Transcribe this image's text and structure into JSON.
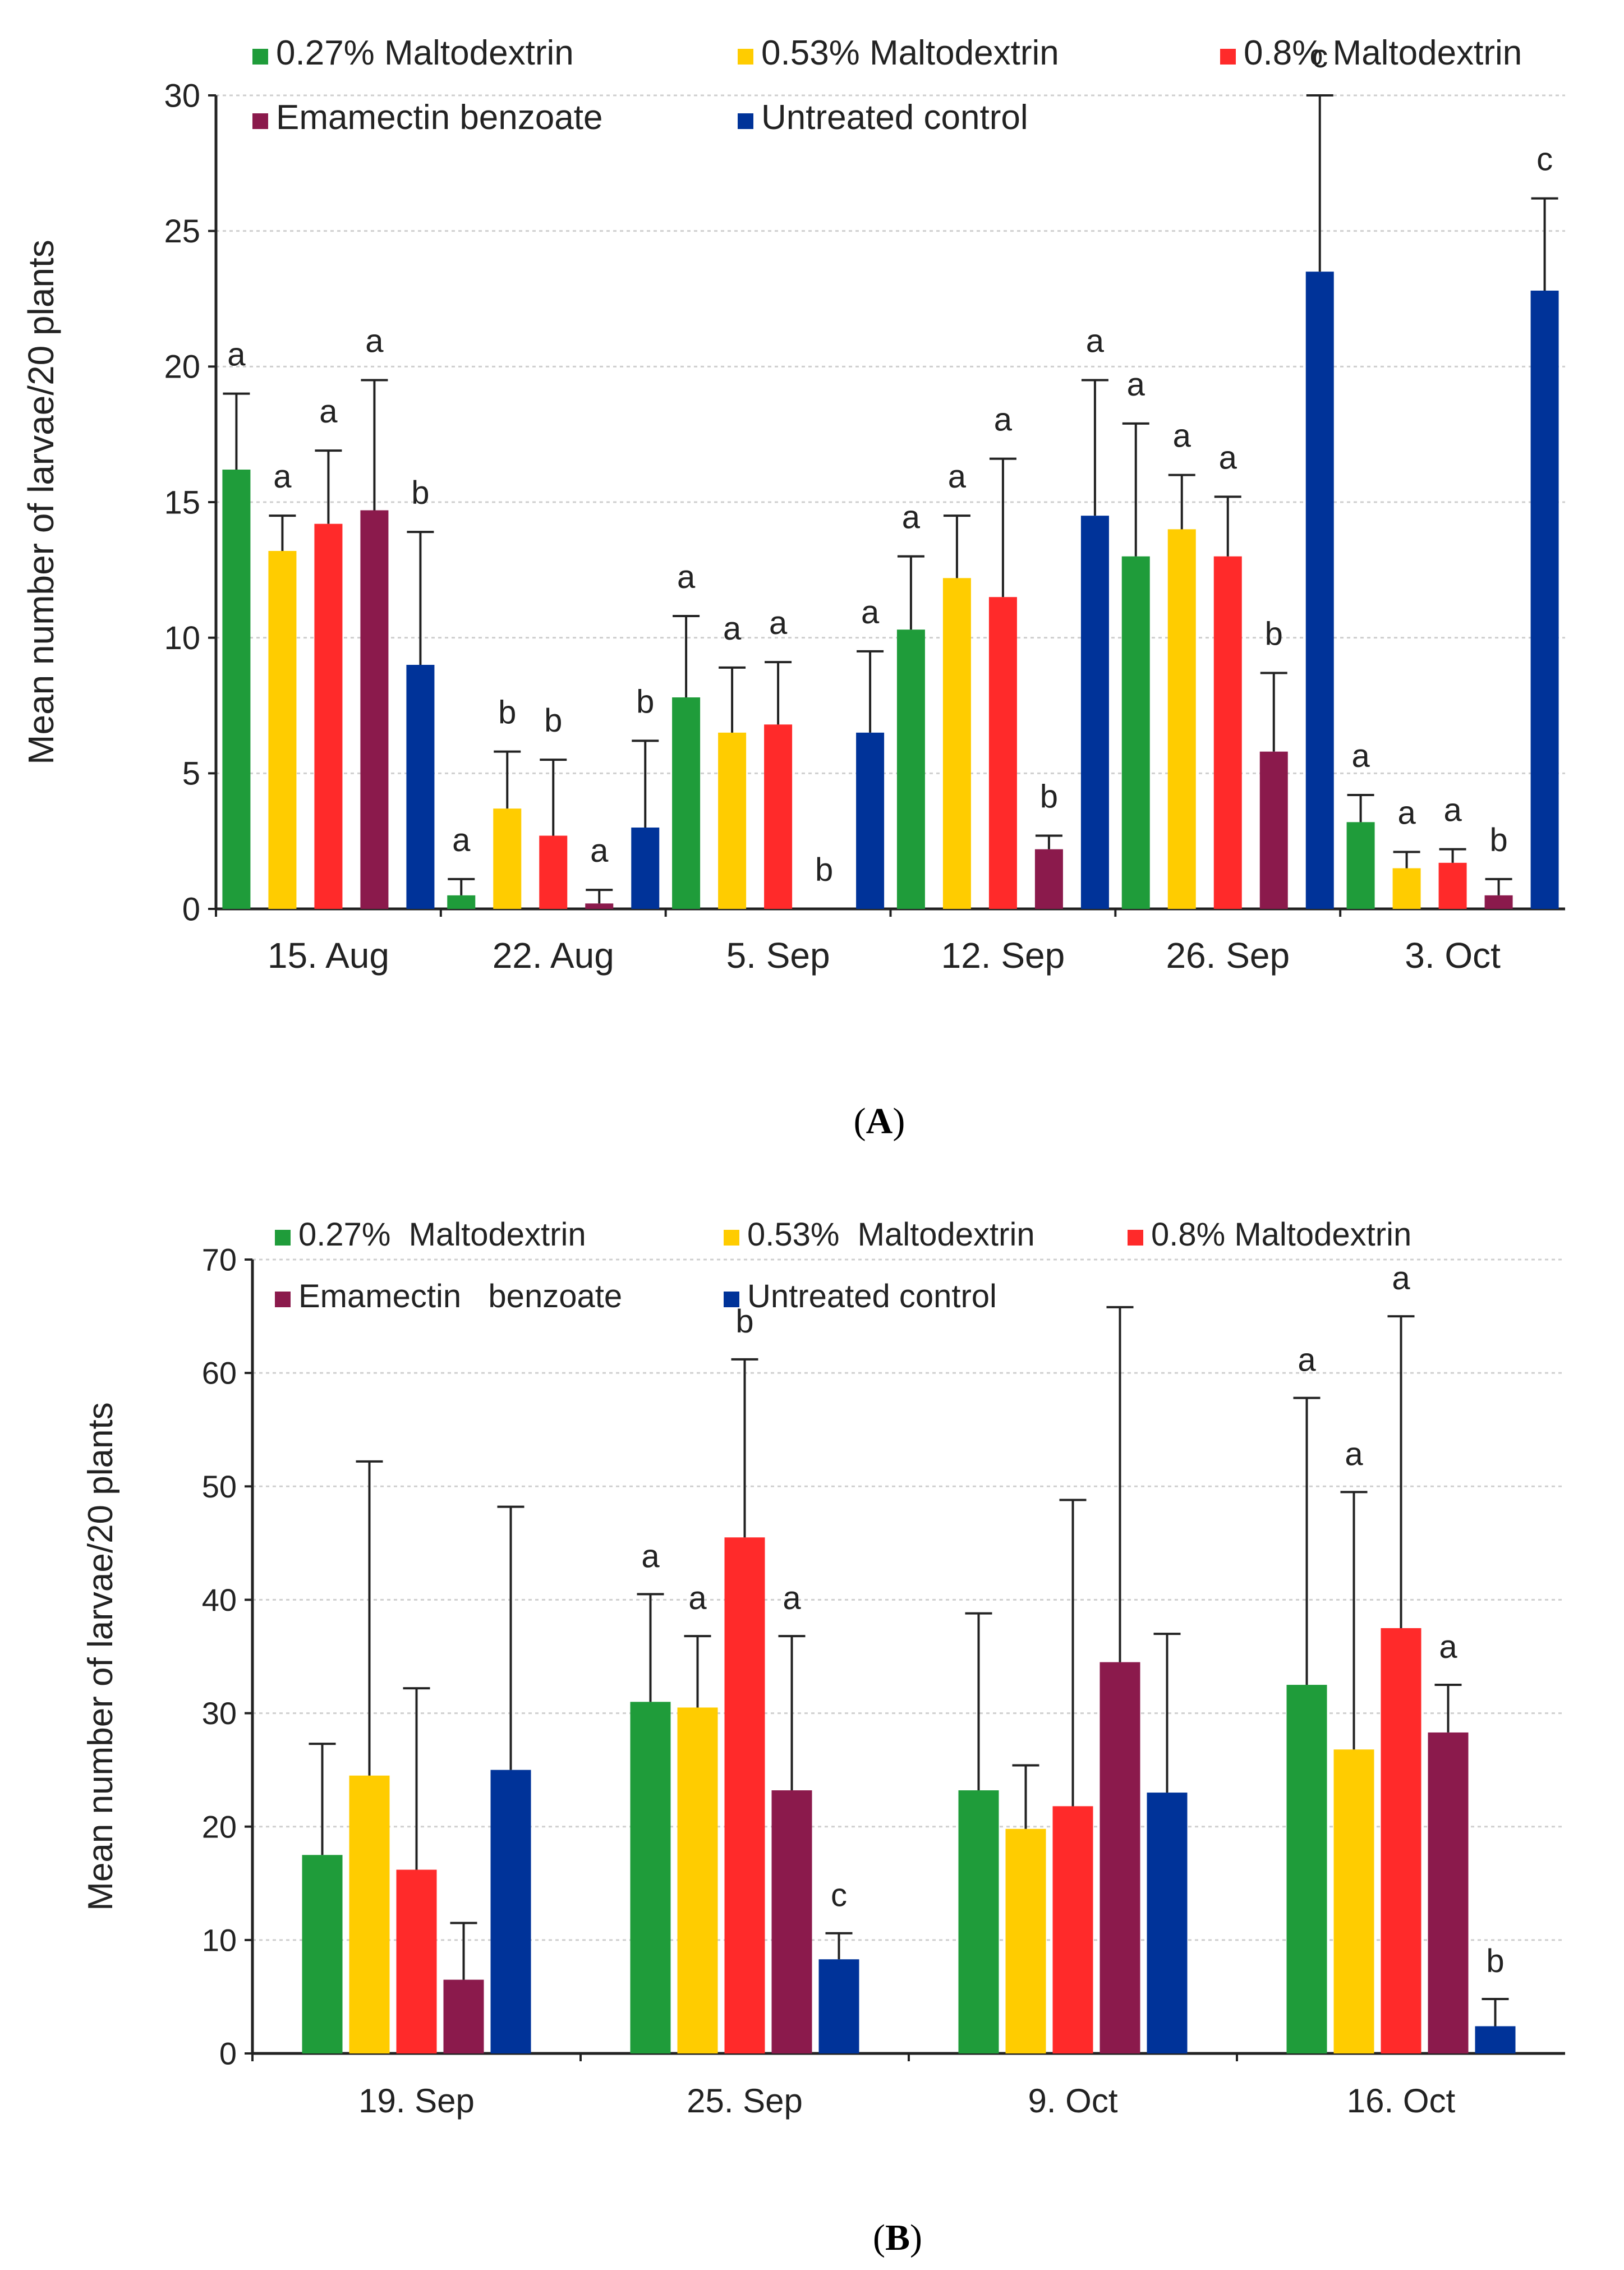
{
  "chart_data": [
    {
      "type": "bar",
      "panel_label": "A",
      "ylabel": "Mean number of larvae/20 plants",
      "ylim": [
        0,
        30
      ],
      "yticks": [
        "0",
        "5",
        "10",
        "15",
        "20",
        "25",
        "30"
      ],
      "grid": true,
      "categories": [
        "15. Aug",
        "22. Aug",
        "5. Sep",
        "12. Sep",
        "26. Sep",
        "3. Oct"
      ],
      "series": [
        {
          "name": "0.27% Maltodextrin",
          "color": "#1f9c3a",
          "values": [
            16.2,
            0.5,
            7.8,
            10.3,
            13.0,
            3.2
          ],
          "errors": [
            2.8,
            0.6,
            3.0,
            2.7,
            4.9,
            1.0
          ],
          "labels": [
            "a",
            "a",
            "a",
            "a",
            "a",
            "a"
          ]
        },
        {
          "name": "0.53% Maltodextrin",
          "color": "#ffcc00",
          "values": [
            13.2,
            3.7,
            6.5,
            12.2,
            14.0,
            1.5
          ],
          "errors": [
            1.3,
            2.1,
            2.4,
            2.3,
            2.0,
            0.6
          ],
          "labels": [
            "a",
            "b",
            "a",
            "a",
            "a",
            "a"
          ]
        },
        {
          "name": "0.8% Maltodextrin",
          "color": "#ff2a2a",
          "values": [
            14.2,
            2.7,
            6.8,
            11.5,
            13.0,
            1.7
          ],
          "errors": [
            2.7,
            2.8,
            2.3,
            5.1,
            2.2,
            0.5
          ],
          "labels": [
            "a",
            "b",
            "a",
            "a",
            "a",
            "a"
          ]
        },
        {
          "name": "Emamectin benzoate",
          "color": "#8b1a4c",
          "values": [
            14.7,
            0.2,
            0.0,
            2.2,
            5.8,
            0.5
          ],
          "errors": [
            4.8,
            0.5,
            0.0,
            0.5,
            2.9,
            0.6
          ],
          "labels": [
            "a",
            "a",
            "b",
            "b",
            "b",
            "b"
          ]
        },
        {
          "name": "Untreated control",
          "color": "#003399",
          "values": [
            9.0,
            3.0,
            6.5,
            14.5,
            23.5,
            22.8
          ],
          "errors": [
            4.9,
            3.2,
            3.0,
            5.0,
            6.5,
            3.4
          ],
          "labels": [
            "b",
            "b",
            "a",
            "a",
            "c",
            "c"
          ]
        }
      ]
    },
    {
      "type": "bar",
      "panel_label": "B",
      "ylabel": "Mean number of larvae/20 plants",
      "ylim": [
        0,
        70
      ],
      "yticks": [
        "0",
        "10",
        "20",
        "30",
        "40",
        "50",
        "60",
        "70"
      ],
      "grid": true,
      "categories": [
        "19. Sep",
        "25. Sep",
        "9. Oct",
        "16. Oct"
      ],
      "series": [
        {
          "name": "0.27%  Maltodextrin",
          "color": "#1f9c3a",
          "values": [
            17.5,
            31.0,
            23.2,
            32.5
          ],
          "errors": [
            9.8,
            9.5,
            15.6,
            25.3
          ],
          "labels": [
            "",
            "a",
            "",
            "a"
          ]
        },
        {
          "name": "0.53%  Maltodextrin",
          "color": "#ffcc00",
          "values": [
            24.5,
            30.5,
            19.8,
            26.8
          ],
          "errors": [
            27.7,
            6.3,
            5.6,
            22.7
          ],
          "labels": [
            "",
            "a",
            "",
            "a"
          ]
        },
        {
          "name": "0.8% Maltodextrin",
          "color": "#ff2a2a",
          "values": [
            16.2,
            45.5,
            21.8,
            37.5
          ],
          "errors": [
            16.0,
            15.7,
            27.0,
            27.5
          ],
          "labels": [
            "",
            "b",
            "",
            "a"
          ]
        },
        {
          "name": "Emamectin   benzoate",
          "color": "#8b1a4c",
          "values": [
            6.5,
            23.2,
            34.5,
            28.3
          ],
          "errors": [
            5.0,
            13.6,
            31.3,
            4.2
          ],
          "labels": [
            "",
            "a",
            "",
            "a"
          ]
        },
        {
          "name": "Untreated control",
          "color": "#003399",
          "values": [
            25.0,
            8.3,
            23.0,
            2.4
          ],
          "errors": [
            23.2,
            2.3,
            14.0,
            2.4
          ],
          "labels": [
            "",
            "c",
            "",
            "b"
          ]
        }
      ]
    }
  ]
}
